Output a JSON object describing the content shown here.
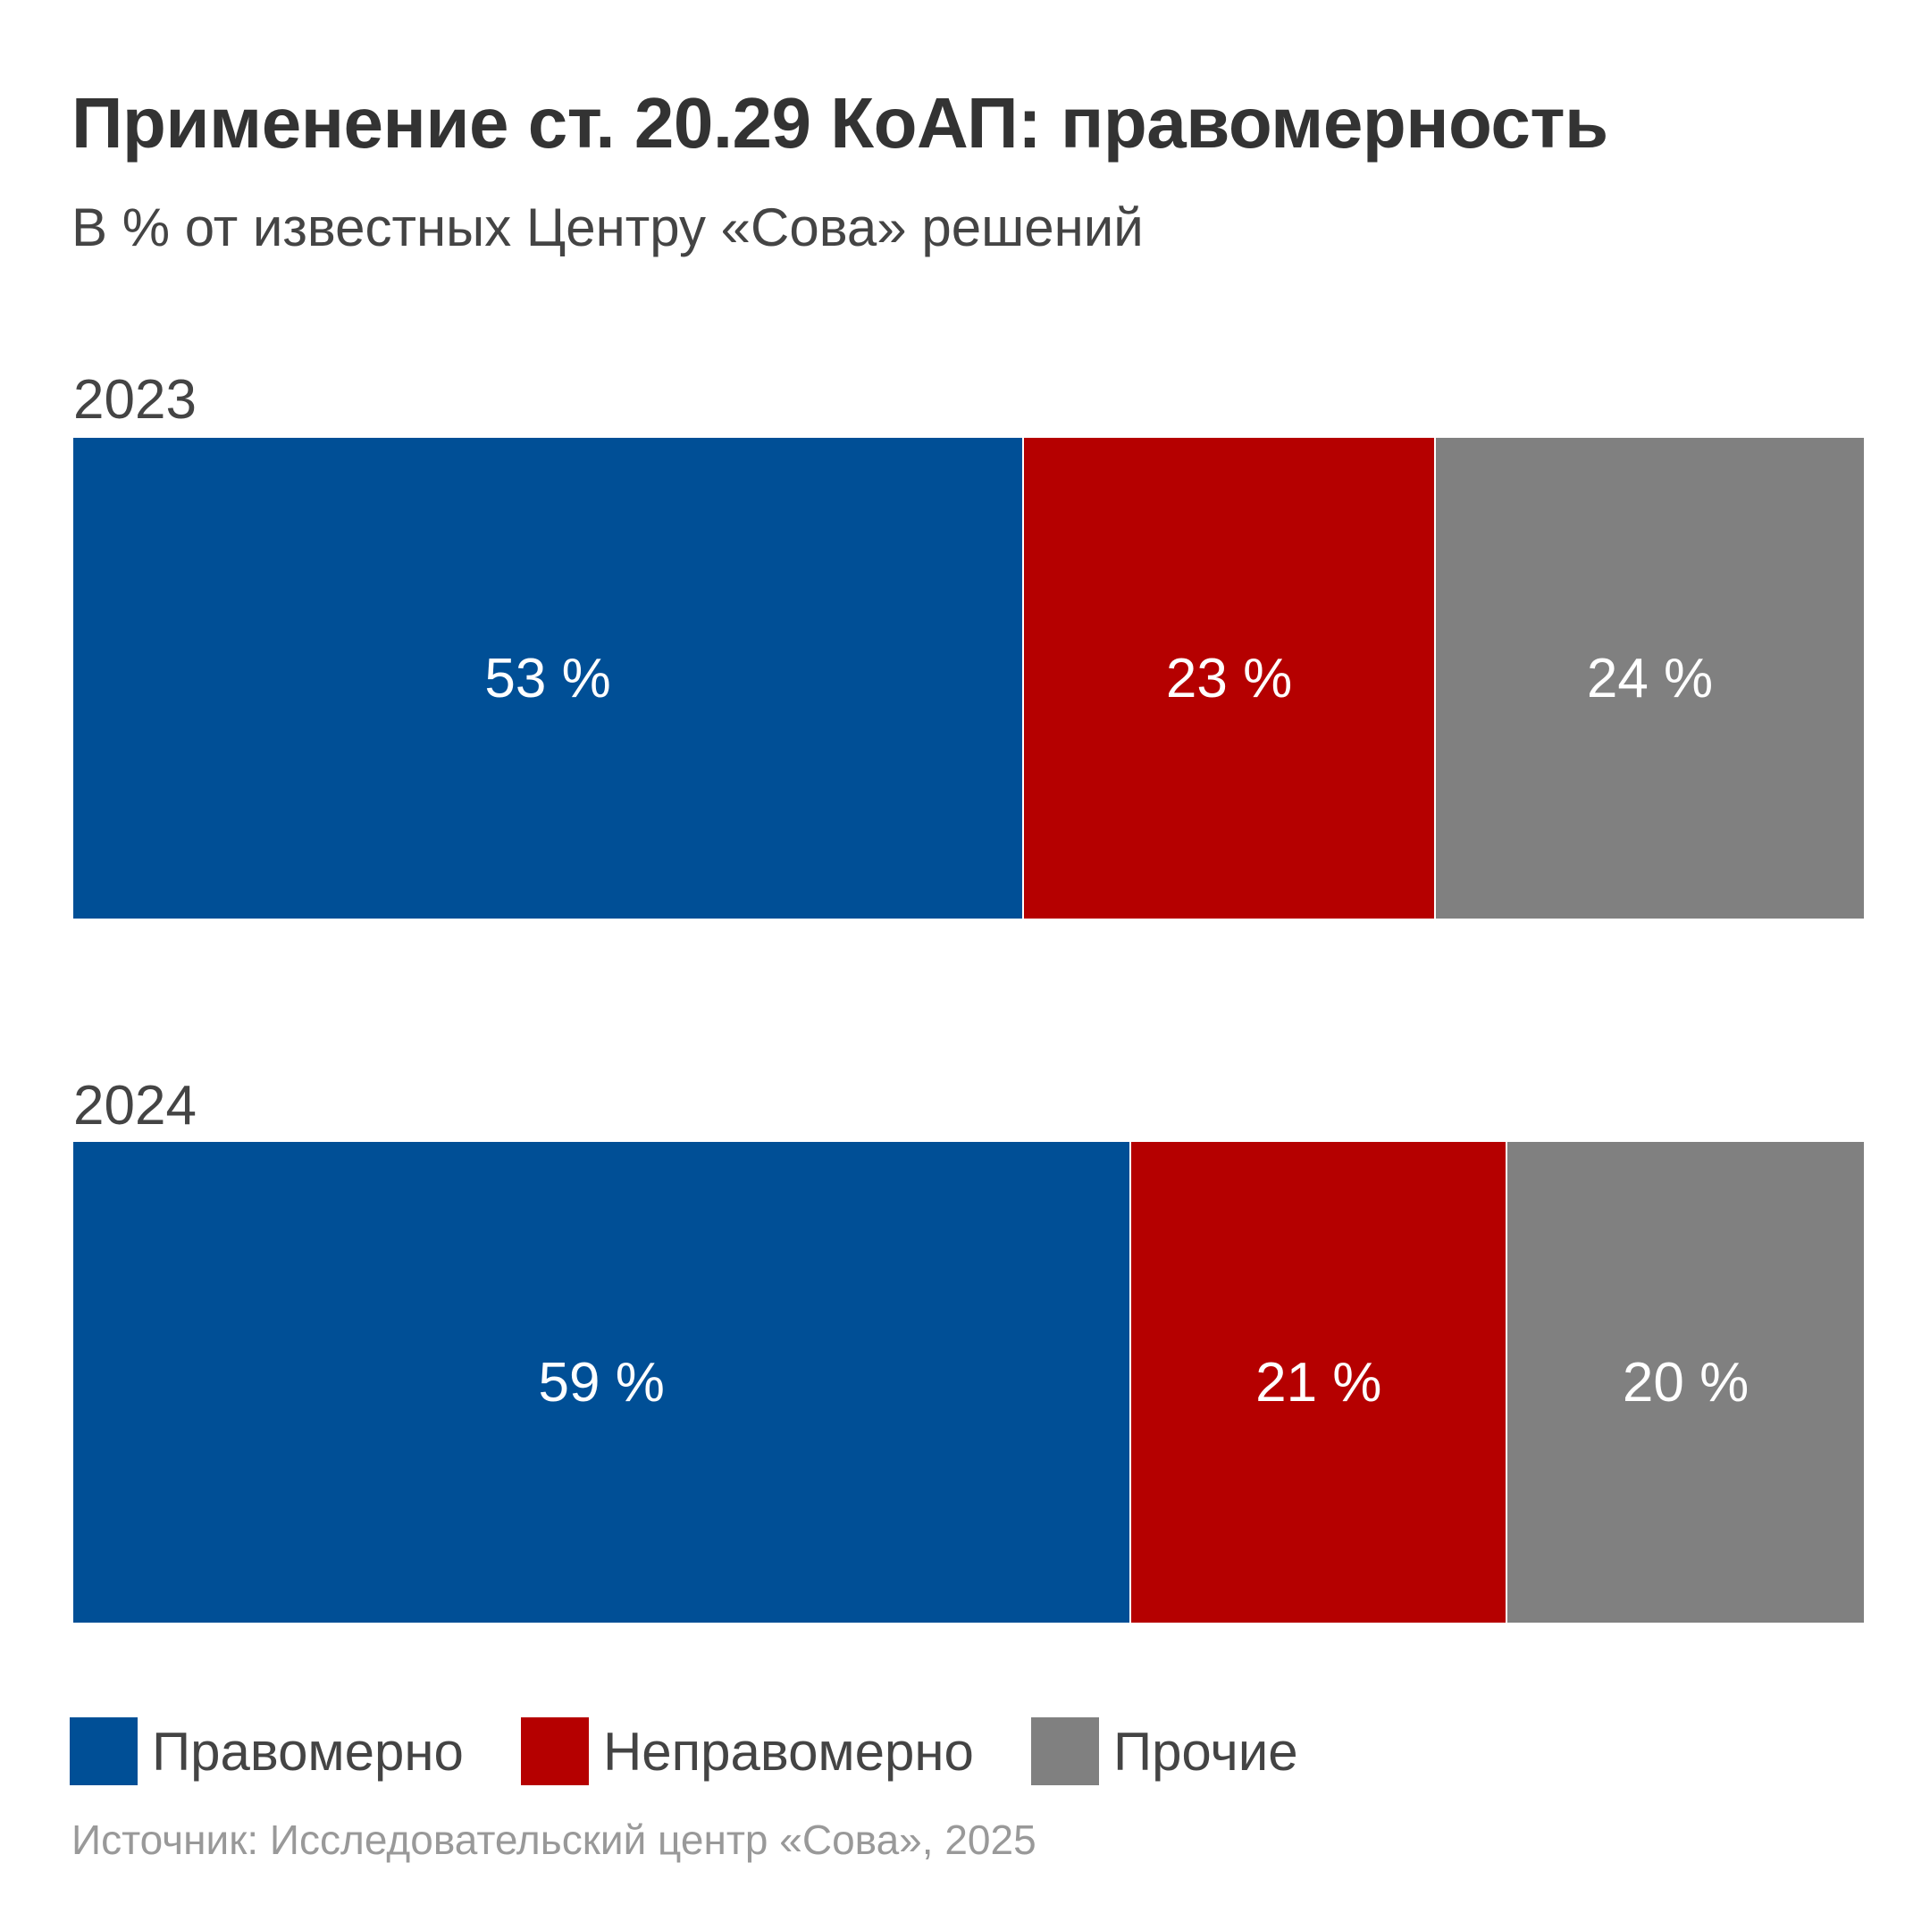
{
  "chart_data": {
    "type": "bar",
    "orientation": "horizontal",
    "stacked": true,
    "title": "Применение ст. 20.29 КоАП: правомерность",
    "subtitle": "В % от известных Центру «Сова» решений",
    "categories": [
      "2023",
      "2024"
    ],
    "series": [
      {
        "name": "Правомерно",
        "color": "#004f96",
        "values": [
          53,
          59
        ],
        "labels": [
          "53 %",
          "59 %"
        ]
      },
      {
        "name": "Неправомерно",
        "color": "#b50000",
        "values": [
          23,
          21
        ],
        "labels": [
          "23 %",
          "21 %"
        ]
      },
      {
        "name": "Прочие",
        "color": "#808080",
        "values": [
          24,
          20
        ],
        "labels": [
          "24 %",
          "20 %"
        ]
      }
    ],
    "xlim": [
      0,
      100
    ],
    "legend_position": "bottom-left",
    "source": "Источник: Исследовательский центр «Сова», 2025"
  }
}
